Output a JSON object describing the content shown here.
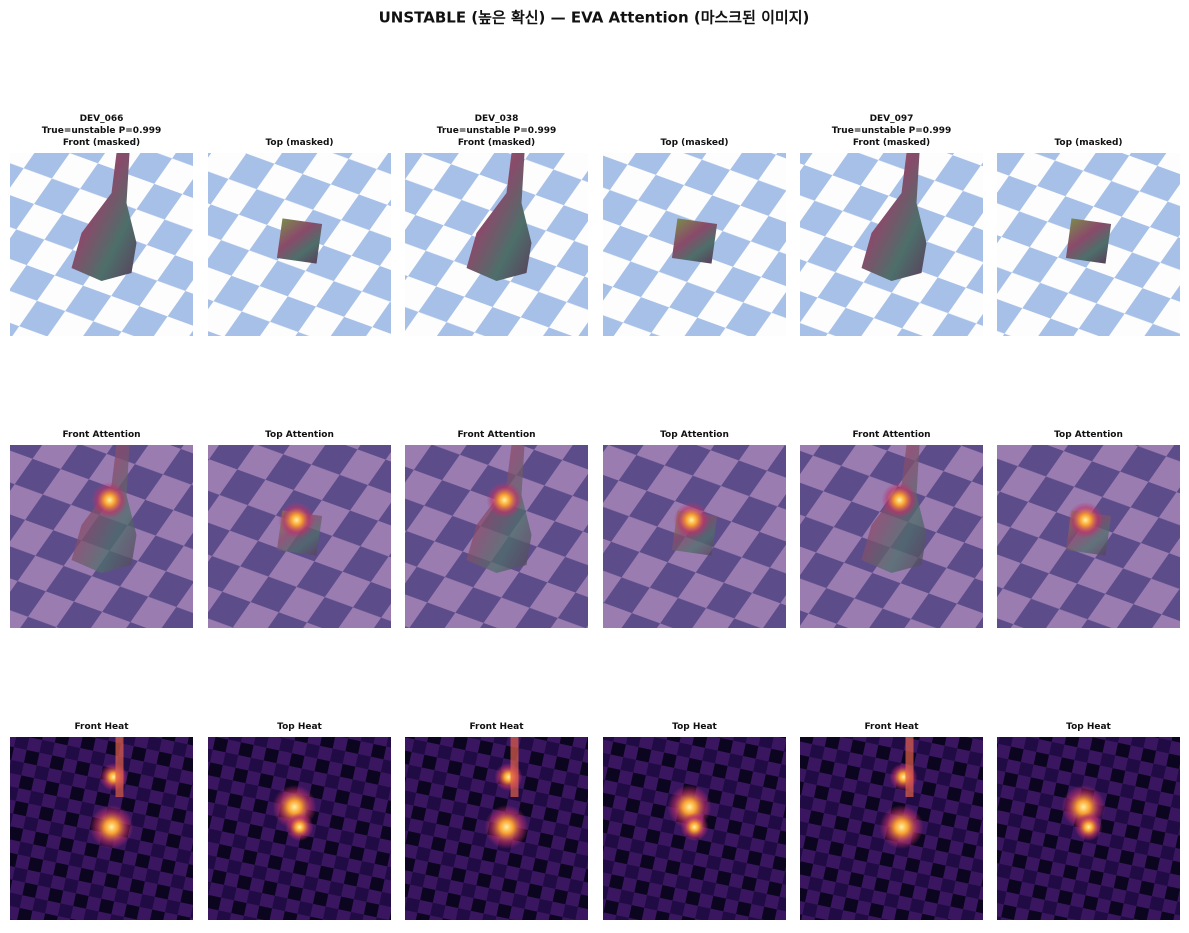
{
  "title": "UNSTABLE (높은 확신) — EVA Attention (마스크된 이미지)",
  "rows": [
    [
      [
        "DEV_066",
        "True=unstable P=0.999",
        "Front (masked)"
      ],
      [
        "Top (masked)"
      ],
      [
        "DEV_038",
        "True=unstable P=0.999",
        "Front (masked)"
      ],
      [
        "Top (masked)"
      ],
      [
        "DEV_097",
        "True=unstable P=0.999",
        "Front (masked)"
      ],
      [
        "Top (masked)"
      ]
    ],
    [
      [
        "Front Attention"
      ],
      [
        "Top Attention"
      ],
      [
        "Front Attention"
      ],
      [
        "Top Attention"
      ],
      [
        "Front Attention"
      ],
      [
        "Top Attention"
      ]
    ],
    [
      [
        "Front Heat"
      ],
      [
        "Top Heat"
      ],
      [
        "Front Heat"
      ],
      [
        "Top Heat"
      ],
      [
        "Front Heat"
      ],
      [
        "Top Heat"
      ]
    ]
  ]
}
